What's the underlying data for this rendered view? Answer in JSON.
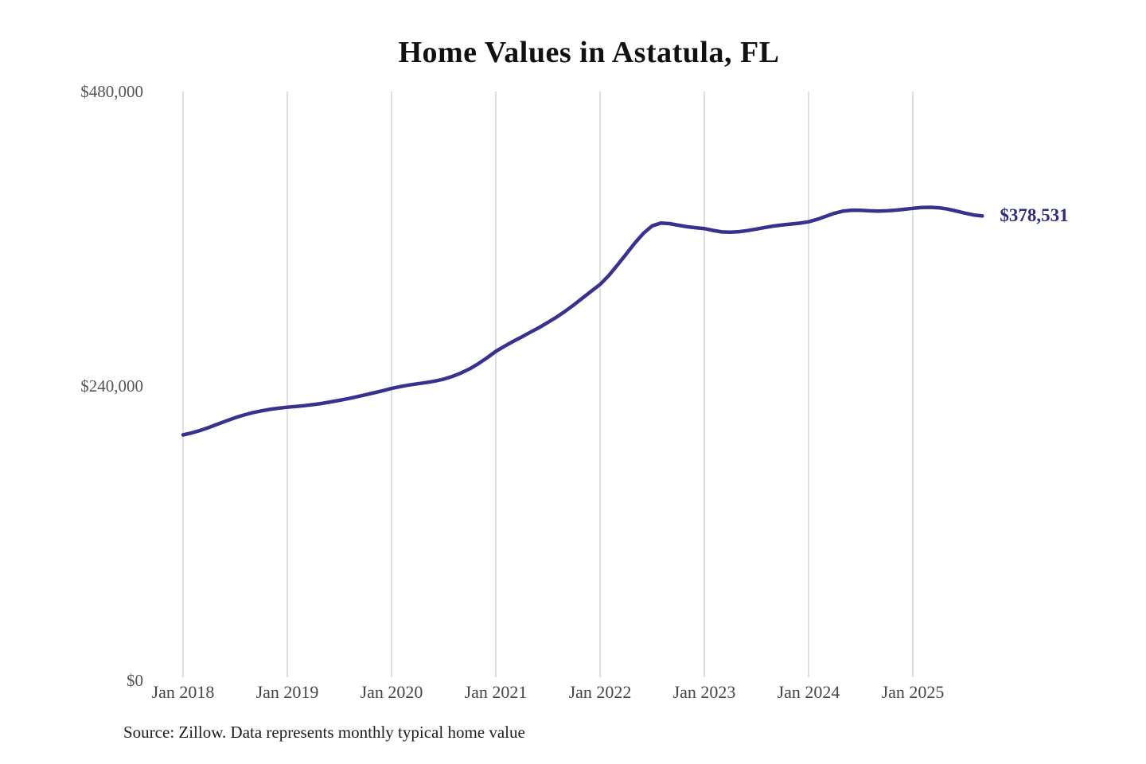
{
  "title": "Home Values in Astatula, FL",
  "source_note": "Source: Zillow. Data represents monthly typical home value",
  "annotation": {
    "end_value_label": "$378,531"
  },
  "colors": {
    "line": "#38318f",
    "end_label": "#2e2b80",
    "grid": "#cccccc",
    "axis_text": "#545454",
    "title_text": "#111111",
    "background": "#ffffff"
  },
  "chart_data": {
    "type": "line",
    "title": "Home Values in Astatula, FL",
    "xlabel": "",
    "ylabel": "",
    "ylim": [
      0,
      480000
    ],
    "y_tick_labels": [
      "$0",
      "$240,000",
      "$480,000"
    ],
    "y_tick_values": [
      0,
      240000,
      480000
    ],
    "x_tick_labels": [
      "Jan 2018",
      "Jan 2019",
      "Jan 2020",
      "Jan 2021",
      "Jan 2022",
      "Jan 2023",
      "Jan 2024",
      "Jan 2025"
    ],
    "grid": "vertical-only",
    "legend": "none",
    "unit": "USD",
    "frequency": "monthly",
    "x_start": "2018-01",
    "x_end": "2025-09",
    "final_value": 378531,
    "series": [
      {
        "name": "Typical home value",
        "values": [
          200100,
          201800,
          203800,
          206300,
          208900,
          211600,
          214100,
          216300,
          218200,
          219700,
          220900,
          221900,
          222700,
          223300,
          224000,
          224800,
          225800,
          227000,
          228300,
          229700,
          231200,
          232800,
          234500,
          236200,
          238000,
          239500,
          240800,
          241800,
          242800,
          244000,
          245600,
          247800,
          250600,
          254000,
          258200,
          263000,
          268200,
          272400,
          276300,
          280100,
          283900,
          287700,
          291800,
          296200,
          301000,
          306200,
          311800,
          317300,
          322800,
          330000,
          338500,
          347500,
          356500,
          364500,
          370500,
          372800,
          372300,
          371000,
          369800,
          369000,
          368300,
          366800,
          365600,
          365300,
          365800,
          366700,
          367900,
          369200,
          370400,
          371300,
          372000,
          372700,
          373800,
          375800,
          378300,
          380800,
          382600,
          383300,
          383200,
          382800,
          382600,
          382800,
          383300,
          384000,
          384800,
          385400,
          385600,
          385200,
          384200,
          382600,
          380900,
          379400,
          378531
        ]
      }
    ]
  }
}
